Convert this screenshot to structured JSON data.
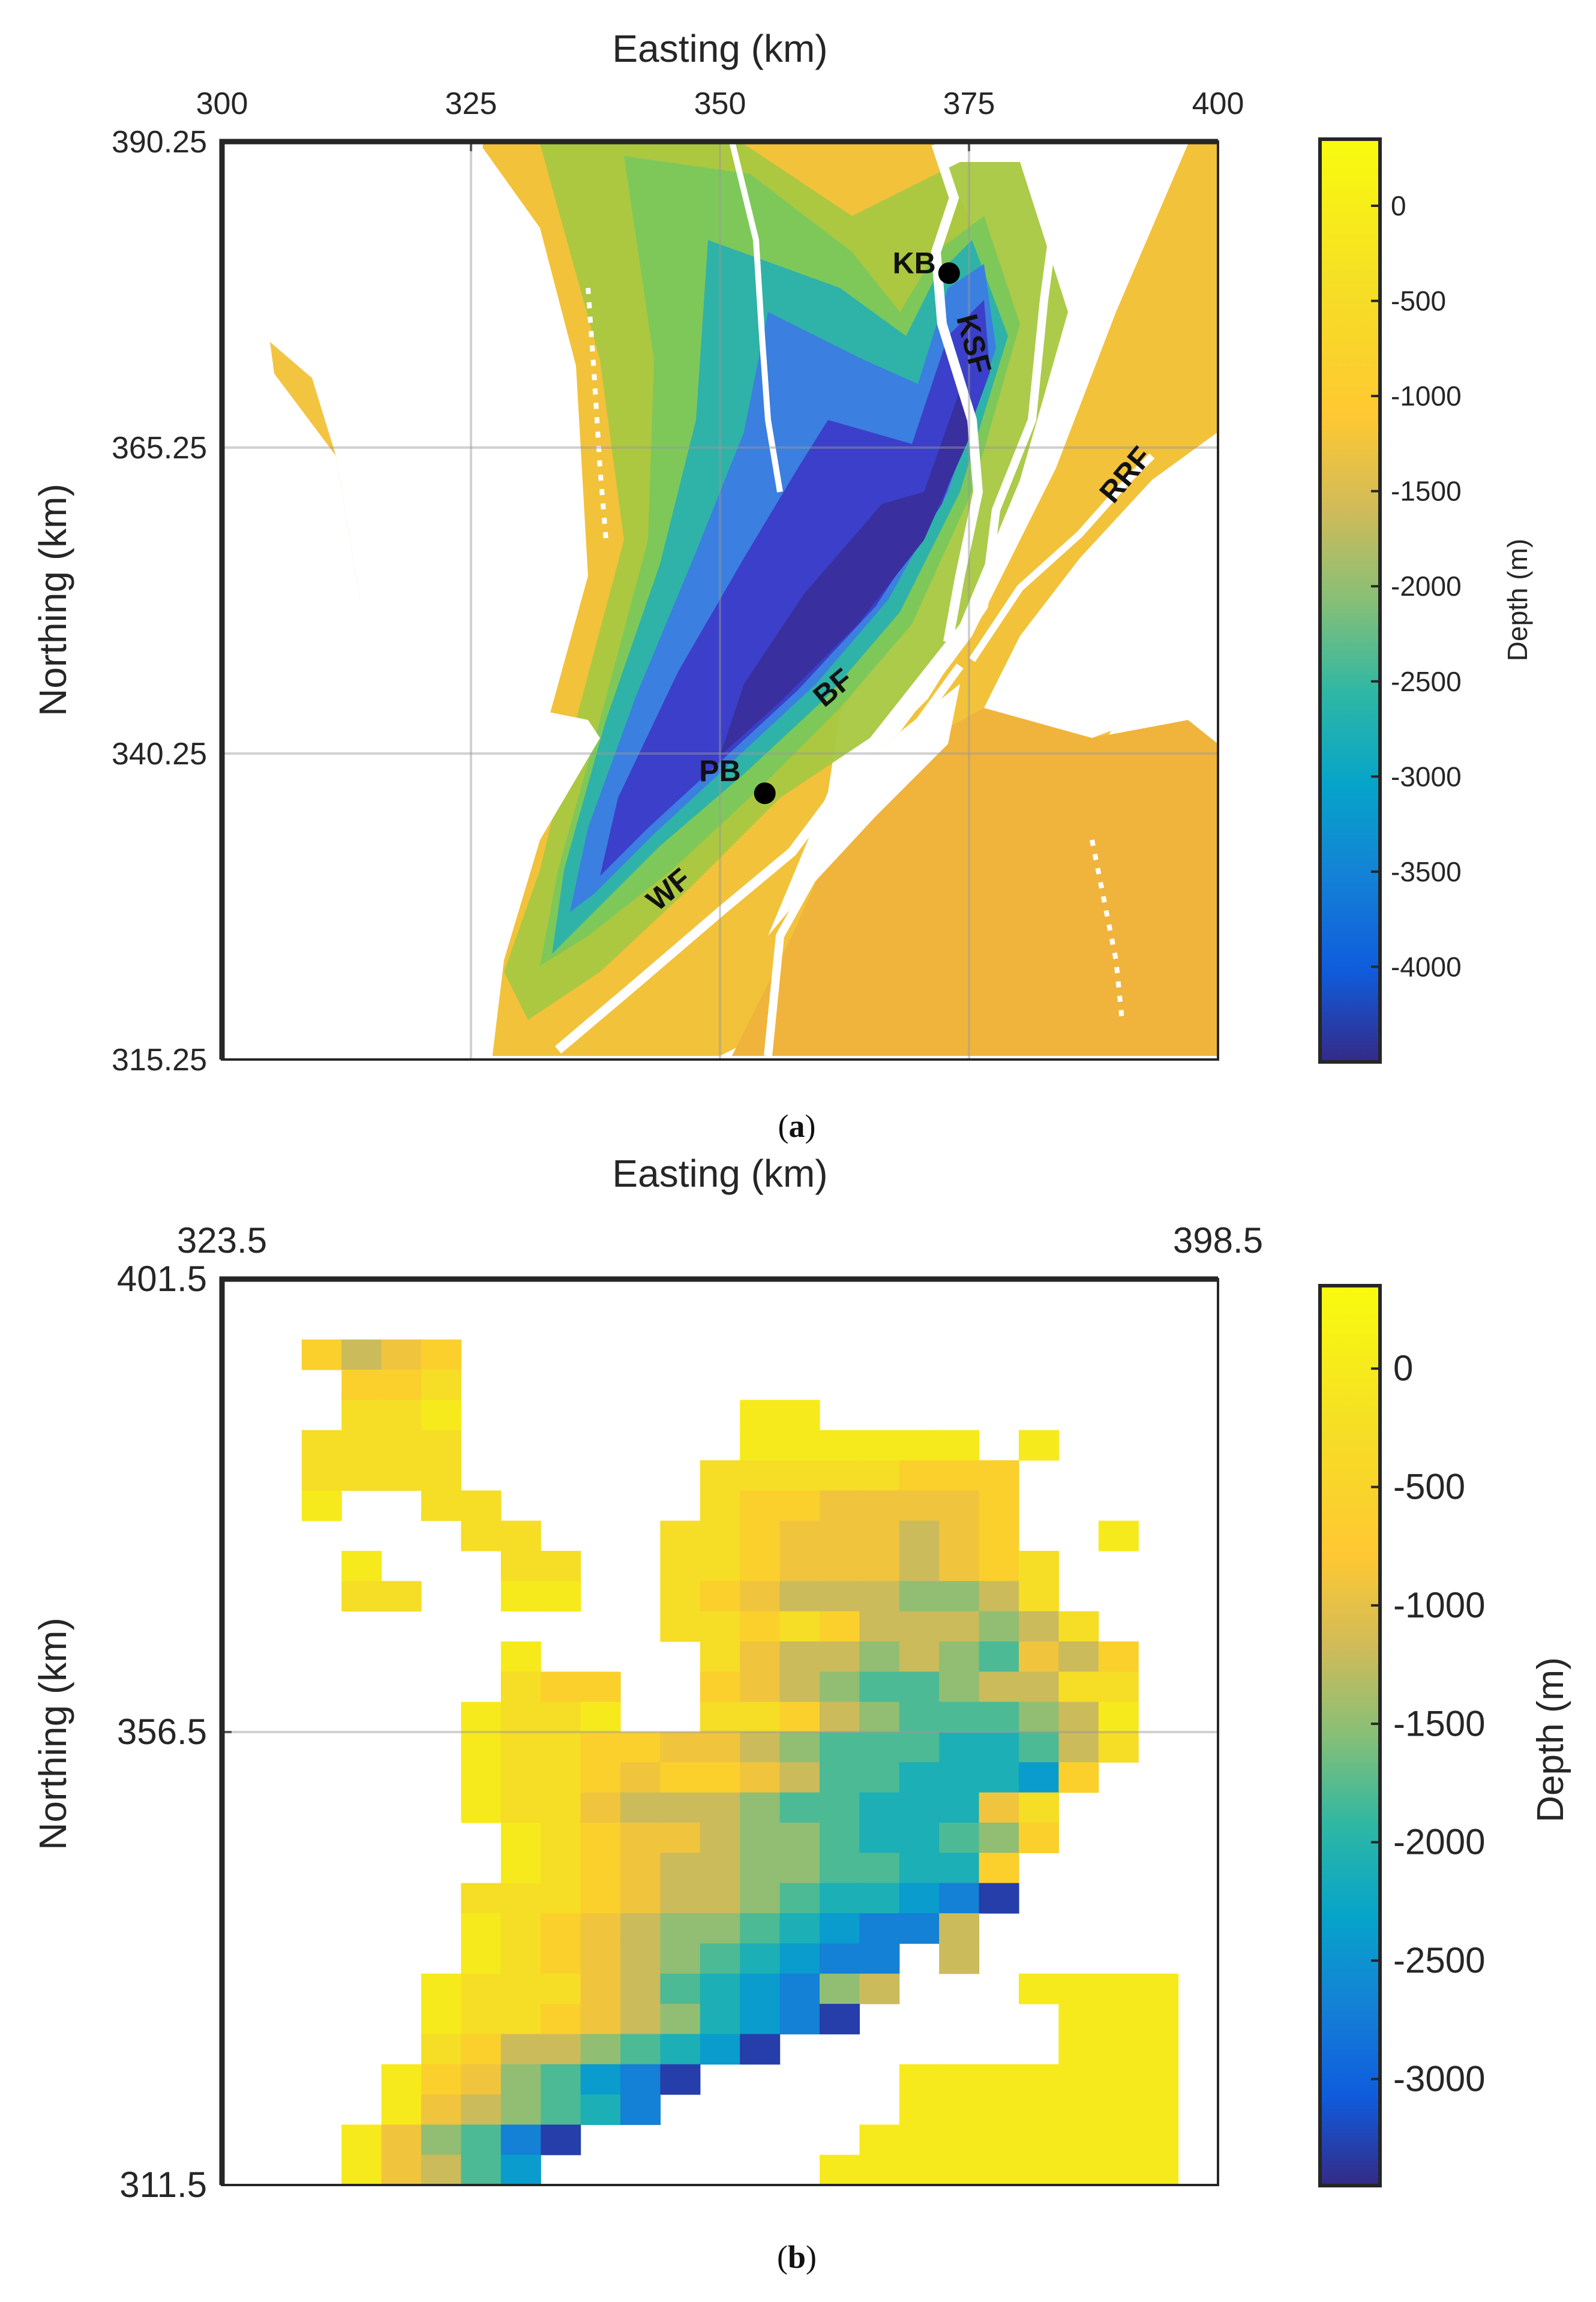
{
  "chart_data": [
    {
      "type": "heatmap",
      "panel_label": "(a)",
      "panel_letter": "a",
      "xlabel": "Easting (km)",
      "ylabel": "Northing (km)",
      "xlim": [
        300,
        400
      ],
      "ylim": [
        315.25,
        390.25
      ],
      "x_ticks": [
        "300",
        "325",
        "350",
        "375",
        "400"
      ],
      "y_ticks": [
        "390.25",
        "365.25",
        "340.25",
        "315.25"
      ],
      "grid": true,
      "colorbar": {
        "label": "Depth (m)",
        "range": [
          -4500,
          350
        ],
        "ticks": [
          "0",
          "-500",
          "-1000",
          "-1500",
          "-2000",
          "-2500",
          "-3000",
          "-3500",
          "-4000"
        ]
      },
      "annotations": [
        {
          "text": "KB",
          "x": 369.5,
          "y": 379.5,
          "marker": true,
          "mx": 373,
          "my": 379.5,
          "rotation": 0
        },
        {
          "text": "KSF",
          "x": 374.5,
          "y": 373.5,
          "marker": false,
          "rotation": 75
        },
        {
          "text": "RRF",
          "x": 391.5,
          "y": 362.5,
          "marker": false,
          "rotation": -50
        },
        {
          "text": "BF",
          "x": 362,
          "y": 345,
          "marker": false,
          "rotation": -40
        },
        {
          "text": "PB",
          "x": 350,
          "y": 338,
          "marker": true,
          "mx": 354.5,
          "my": 337,
          "rotation": 0
        },
        {
          "text": "WF",
          "x": 345.5,
          "y": 328.5,
          "marker": false,
          "rotation": -40
        }
      ]
    },
    {
      "type": "heatmap",
      "panel_label": "(b)",
      "panel_letter": "b",
      "xlabel": "Easting (km)",
      "ylabel": "Northing (km)",
      "xlim": [
        323.5,
        398.5
      ],
      "ylim": [
        311.5,
        401.5
      ],
      "x_ticks": [
        "323.5",
        "398.5"
      ],
      "y_ticks": [
        "401.5",
        "356.5",
        "311.5"
      ],
      "grid": true,
      "colorbar": {
        "label": "Depth (m)",
        "range": [
          -3450,
          350
        ],
        "ticks": [
          "0",
          "-500",
          "-1000",
          "-1500",
          "-2000",
          "-2500",
          "-3000"
        ]
      },
      "cell_size_km": 3,
      "depth_bins_m": [
        0,
        -300,
        -600,
        -900,
        -1200,
        -1500,
        -1800,
        -2100,
        -2400,
        -2700,
        -3000
      ],
      "grid_cells_legend": "row 0 = top (north); characters 0-9 index depth_bins_m, a = -3300 m, '.' = no data",
      "grid_cells": [
        ".......................",
        ".......................",
        "..2432.................",
        "...221.................",
        "...110.......00........",
        "..1111.......000000.0..",
        "..1111......11111222...",
        "..0..11.....12233332...",
        "......11...112333432..0",
        "...0...11..1123334321..",
        "...11..00..1234445541..",
        "...........11212444541..",
        ".......0....13445456342.",
        ".......122..23456654411.",
        "......0110..11245666540.",
        "......01122334566677641.",
        "......0112322346677782..",
        "......011344456677731...",
        ".......01233455677652...",
        ".......0123445566772....",
        "......1112344567789a....",
        "......0123455678994.....",
        "......01234567899.4.....",
        ".....011134678954...0000",
        ".....0112345789a.....000",
        ".....12445678a.......000",
        "....0235689a.....0000000",
        "....0345679......0000000",
        "...03569a.......00000000",
        "...03468.......000000000"
      ]
    }
  ]
}
